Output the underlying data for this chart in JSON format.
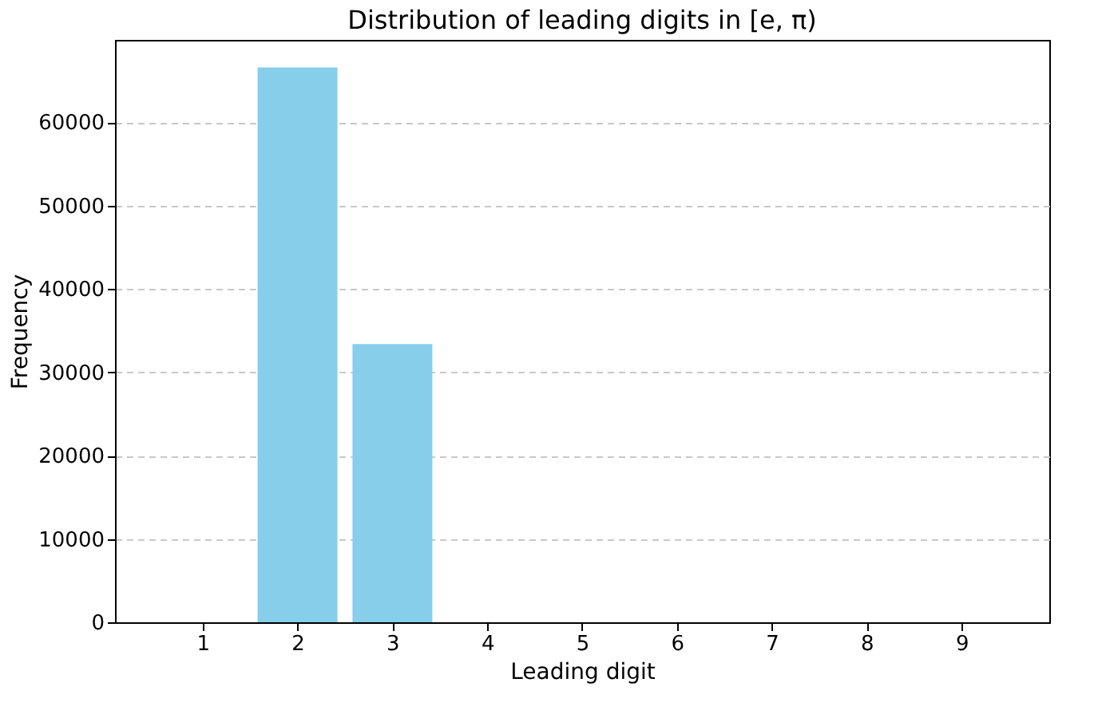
{
  "chart_data": {
    "type": "bar",
    "title": "Distribution of leading digits in [e, π)",
    "xlabel": "Leading digit",
    "ylabel": "Frequency",
    "categories": [
      "1",
      "2",
      "3",
      "4",
      "5",
      "6",
      "7",
      "8",
      "9"
    ],
    "values": [
      0,
      66600,
      33400,
      0,
      0,
      0,
      0,
      0,
      0
    ],
    "color": "#87ceeb",
    "ylim": [
      0,
      69900
    ],
    "yticks": [
      0,
      10000,
      20000,
      30000,
      40000,
      50000,
      60000
    ],
    "grid": "y",
    "line_style": "dashed"
  }
}
